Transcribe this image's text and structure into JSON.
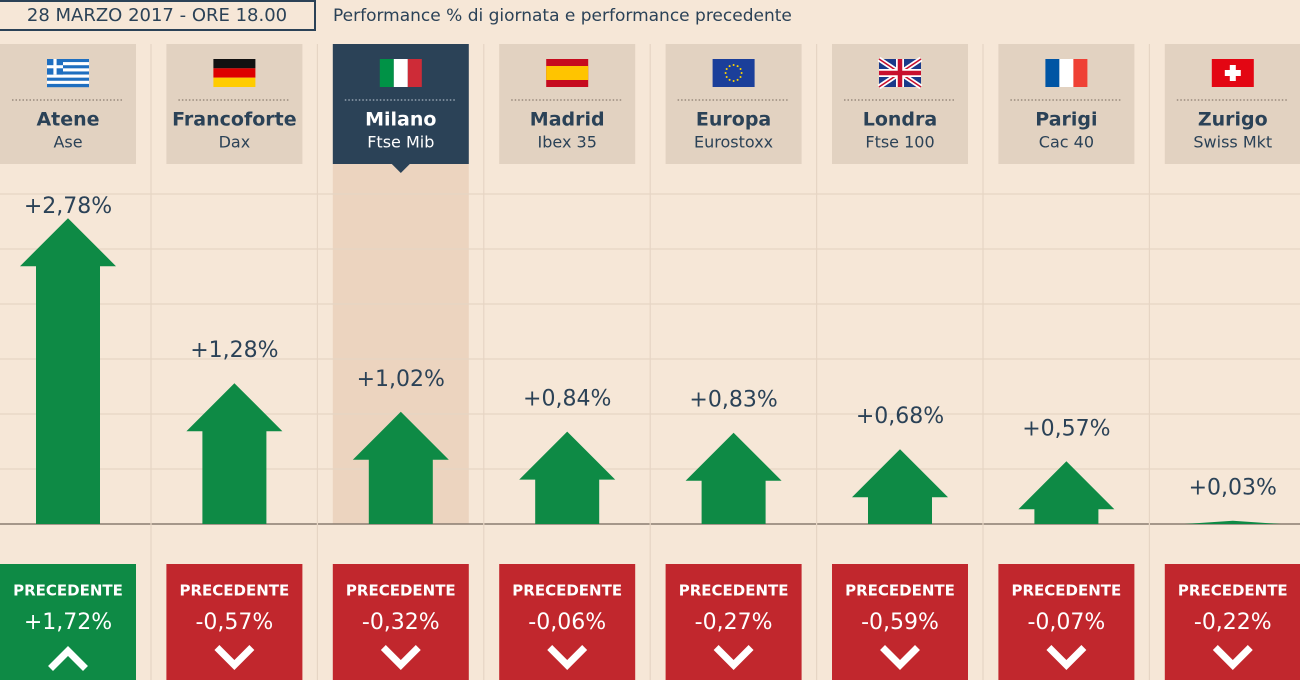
{
  "chart_data": {
    "type": "arrow-bar",
    "title": "28 MARZO 2017 - ORE 18.00",
    "subtitle": "Performance % di giornata e performance precedente",
    "categories": [
      "Atene",
      "Francoforte",
      "Milano",
      "Madrid",
      "Europa",
      "Londra",
      "Parigi",
      "Zurigo"
    ],
    "indices": [
      "Ase",
      "Dax",
      "Ftse Mib",
      "Ibex 35",
      "Eurostoxx",
      "Ftse 100",
      "Cac 40",
      "Swiss Mkt"
    ],
    "values": [
      2.78,
      1.28,
      1.02,
      0.84,
      0.83,
      0.68,
      0.57,
      0.03
    ],
    "value_labels": [
      "+2,78%",
      "+1,28%",
      "+1,02%",
      "+0,84%",
      "+0,83%",
      "+0,68%",
      "+0,57%",
      "+0,03%"
    ],
    "previous_label": "PRECEDENTE",
    "previous": [
      1.72,
      -0.57,
      -0.32,
      -0.06,
      -0.27,
      -0.59,
      -0.07,
      -0.22
    ],
    "previous_labels": [
      "+1,72%",
      "-0,57%",
      "-0,32%",
      "-0,06%",
      "-0,27%",
      "-0,59%",
      "-0,07%",
      "-0,22%"
    ],
    "up_color": "#0e8a45",
    "down_color": "#c1272d",
    "highlight": "Milano",
    "ylim": [
      0,
      3
    ],
    "yticks": [
      0,
      0.5,
      1,
      1.5,
      2,
      2.5,
      3
    ],
    "grid": true
  }
}
